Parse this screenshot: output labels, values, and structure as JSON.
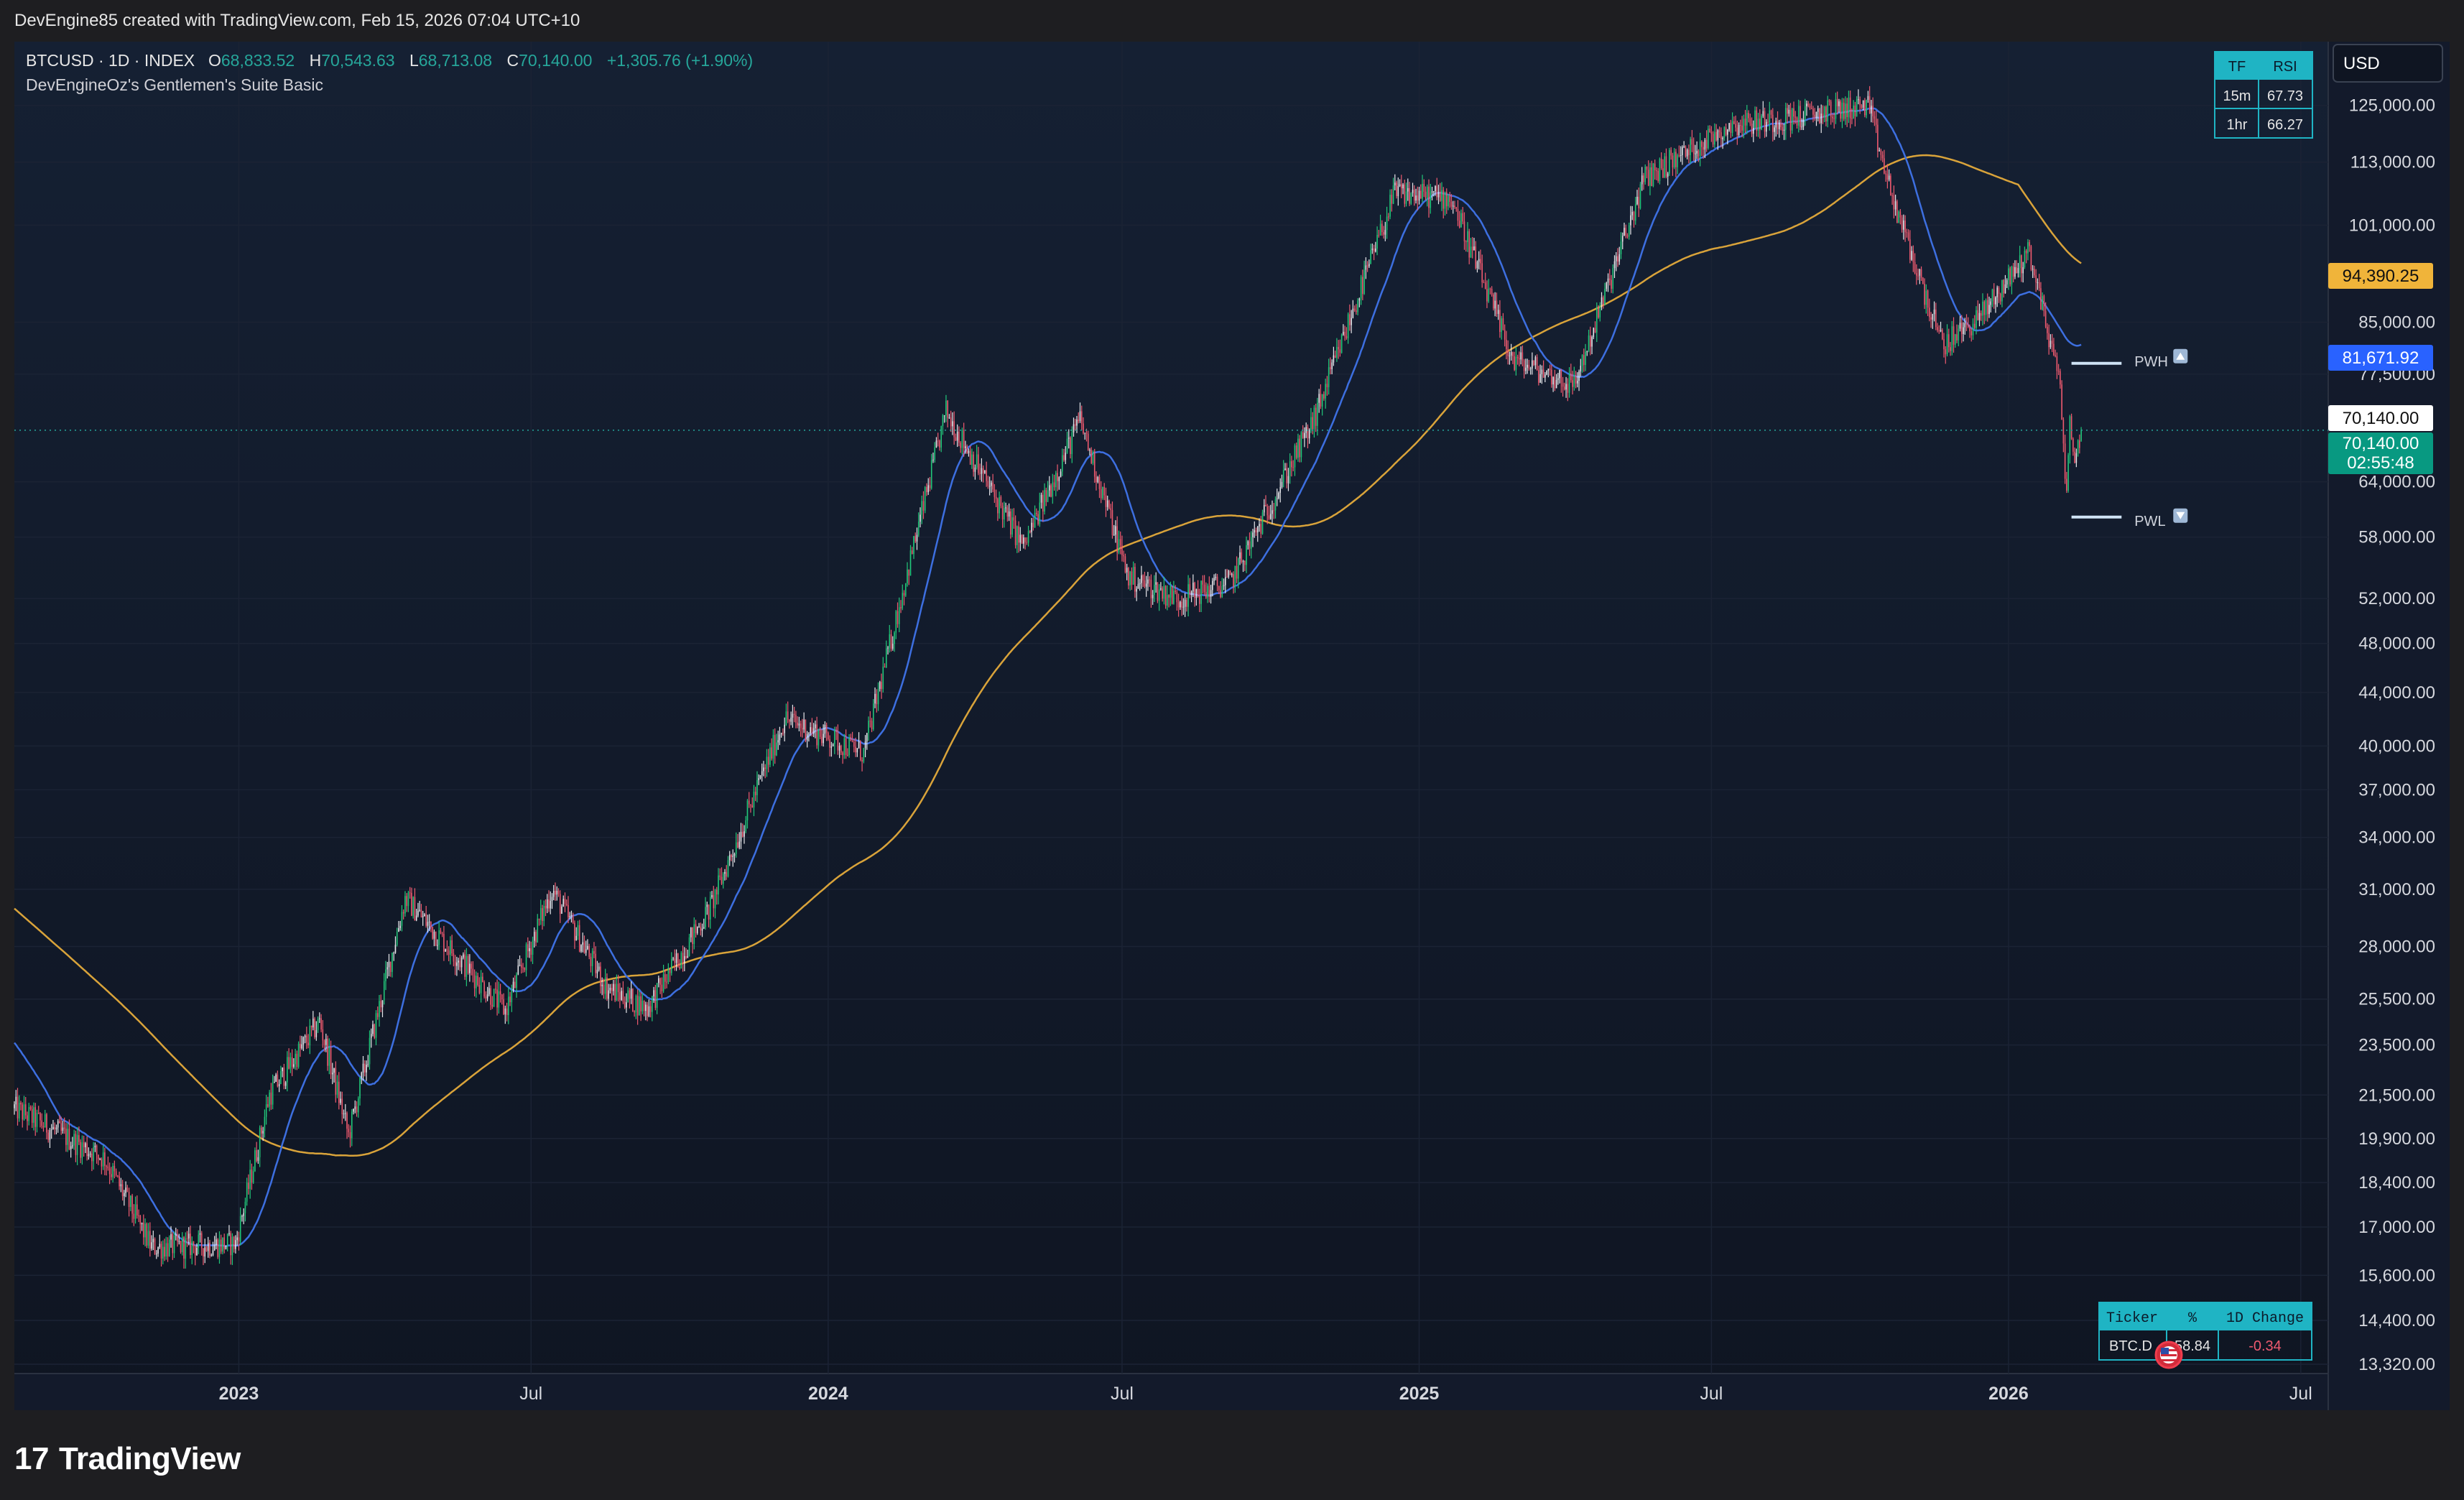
{
  "attribution": "DevEngine85 created with TradingView.com, Feb 15, 2026 07:04 UTC+10",
  "legend": {
    "symbol": "BTCUSD · 1D · INDEX",
    "o_label": "O",
    "o_value": "68,833.52",
    "h_label": "H",
    "h_value": "70,543.63",
    "l_label": "L",
    "l_value": "68,713.08",
    "c_label": "C",
    "c_value": "70,140.00",
    "change": "+1,305.76 (+1.90%)",
    "indicator": "DevEngineOz's Gentlemen's Suite Basic"
  },
  "currency": "USD",
  "rsi_table": {
    "headers": [
      "TF",
      "RSI"
    ],
    "rows": [
      [
        "15m",
        "67.73"
      ],
      [
        "1hr",
        "66.27"
      ]
    ]
  },
  "ticker_table": {
    "headers": [
      "Ticker",
      "%",
      "1D Change"
    ],
    "rows": [
      [
        "BTC.D",
        "58.84",
        "-0.34"
      ]
    ]
  },
  "price_labels": {
    "ma_slow": "94,390.25",
    "ma_fast": "81,671.92",
    "last": "70,140.00",
    "last_green": "70,140.00",
    "countdown": "02:55:48"
  },
  "pw_labels": {
    "high": "PWH",
    "low": "PWL"
  },
  "colors": {
    "background": "#131a2b",
    "up_candle": "#e8e8ec",
    "down_candle": "#ef5a6f",
    "strong_up": "#22c77a",
    "fast_ma": "#3d6fe0",
    "slow_ma": "#d9a33a",
    "accent_teal": "#26a69a",
    "table_header": "#1fb4c4"
  },
  "footer": {
    "logo_text": "TradingView"
  },
  "chart_data": {
    "type": "candlestick",
    "title": "",
    "y_scale": "log",
    "y_ticks": [
      "125,000.00",
      "113,000.00",
      "101,000.00",
      "85,000.00",
      "77,500.00",
      "64,000.00",
      "58,000.00",
      "52,000.00",
      "48,000.00",
      "44,000.00",
      "40,000.00",
      "37,000.00",
      "34,000.00",
      "31,000.00",
      "28,000.00",
      "25,500.00",
      "23,500.00",
      "21,500.00",
      "19,900.00",
      "18,400.00",
      "17,000.00",
      "15,600.00",
      "14,400.00",
      "13,320.00"
    ],
    "y_tick_values": [
      125000,
      113000,
      101000,
      85000,
      77500,
      64000,
      58000,
      52000,
      48000,
      44000,
      40000,
      37000,
      34000,
      31000,
      28000,
      25500,
      23500,
      21500,
      19900,
      18400,
      17000,
      15600,
      14400,
      13320
    ],
    "x_ticks": [
      {
        "label": "2023",
        "date": "2023-01-01",
        "bold": true
      },
      {
        "label": "Jul",
        "date": "2023-07-01",
        "bold": false
      },
      {
        "label": "2024",
        "date": "2024-01-01",
        "bold": true
      },
      {
        "label": "Jul",
        "date": "2024-07-01",
        "bold": false
      },
      {
        "label": "2025",
        "date": "2025-01-01",
        "bold": true
      },
      {
        "label": "Jul",
        "date": "2025-07-01",
        "bold": false
      },
      {
        "label": "2026",
        "date": "2026-01-01",
        "bold": true
      },
      {
        "label": "Jul",
        "date": "2026-07-01",
        "bold": false
      }
    ],
    "x_range": [
      "2022-08-15",
      "2026-07-18"
    ],
    "y_range": [
      13100,
      140000
    ],
    "price_anchors": [
      [
        "2022-08-15",
        21000
      ],
      [
        "2022-10-10",
        19200
      ],
      [
        "2022-11-08",
        16400
      ],
      [
        "2022-12-30",
        16500
      ],
      [
        "2023-01-20",
        21500
      ],
      [
        "2023-02-20",
        24500
      ],
      [
        "2023-03-10",
        20000
      ],
      [
        "2023-04-14",
        30500
      ],
      [
        "2023-06-15",
        25000
      ],
      [
        "2023-07-14",
        31000
      ],
      [
        "2023-08-17",
        26000
      ],
      [
        "2023-09-11",
        25100
      ],
      [
        "2023-10-20",
        30000
      ],
      [
        "2023-12-05",
        42000
      ],
      [
        "2024-01-23",
        39500
      ],
      [
        "2024-03-14",
        72500
      ],
      [
        "2024-05-01",
        57000
      ],
      [
        "2024-06-05",
        71500
      ],
      [
        "2024-07-05",
        54000
      ],
      [
        "2024-08-05",
        52000
      ],
      [
        "2024-09-06",
        53500
      ],
      [
        "2024-10-28",
        71500
      ],
      [
        "2024-12-17",
        107000
      ],
      [
        "2025-01-21",
        106000
      ],
      [
        "2025-02-28",
        79500
      ],
      [
        "2025-04-07",
        76000
      ],
      [
        "2025-05-21",
        110000
      ],
      [
        "2025-07-14",
        121000
      ],
      [
        "2025-08-14",
        122000
      ],
      [
        "2025-10-06",
        125000
      ],
      [
        "2025-10-20",
        107000
      ],
      [
        "2025-11-21",
        81500
      ],
      [
        "2025-12-15",
        86000
      ],
      [
        "2026-01-14",
        96500
      ],
      [
        "2026-02-02",
        76000
      ],
      [
        "2026-02-06",
        62500
      ],
      [
        "2026-02-08",
        70500
      ],
      [
        "2026-02-12",
        66500
      ],
      [
        "2026-02-15",
        70140
      ]
    ],
    "last_candle": {
      "date": "2026-02-15",
      "open": 68833.52,
      "high": 70543.63,
      "low": 68713.08,
      "close": 70140.0
    },
    "series": [
      {
        "name": "",
        "kind": "fast_ma",
        "last": 81671.92
      },
      {
        "name": "",
        "kind": "slow_ma",
        "last": 94390.25
      }
    ],
    "levels": [
      {
        "label": "PWH",
        "value": 79000
      },
      {
        "label": "PWL",
        "value": 60100
      }
    ]
  }
}
